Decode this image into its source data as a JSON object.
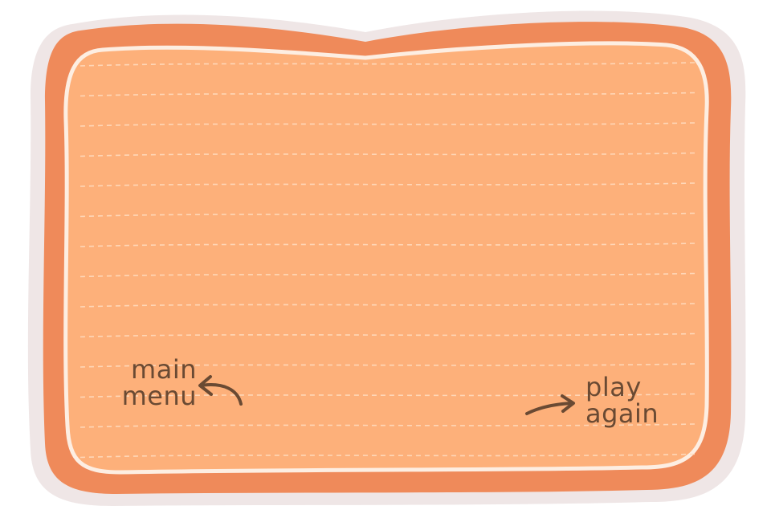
{
  "buttons": {
    "main_menu": {
      "line1": "main",
      "line2": "menu"
    },
    "play_again": {
      "line1": "play",
      "line2": "again"
    }
  },
  "colors": {
    "shadow_outline": "#f0e8e8",
    "frame_border": "#ef8a5a",
    "inner_stroke": "#fdeee2",
    "paper_fill": "#fdb07a",
    "stitch_line": "#ffd9bb",
    "text_brown": "#6a4a33"
  },
  "icons": {
    "main_menu_arrow": "curved-arrow-left-icon",
    "play_again_arrow": "curved-arrow-right-icon"
  }
}
